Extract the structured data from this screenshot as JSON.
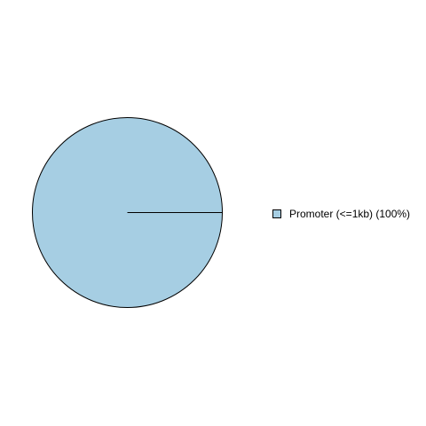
{
  "chart_data": {
    "type": "pie",
    "title": "",
    "legend_position": "right",
    "slices": [
      {
        "label": "Promoter (<=1kb) (100%)",
        "value": 100,
        "color": "#a6cee3"
      }
    ]
  },
  "colors": {
    "outline": "#000000",
    "background": "#ffffff"
  }
}
